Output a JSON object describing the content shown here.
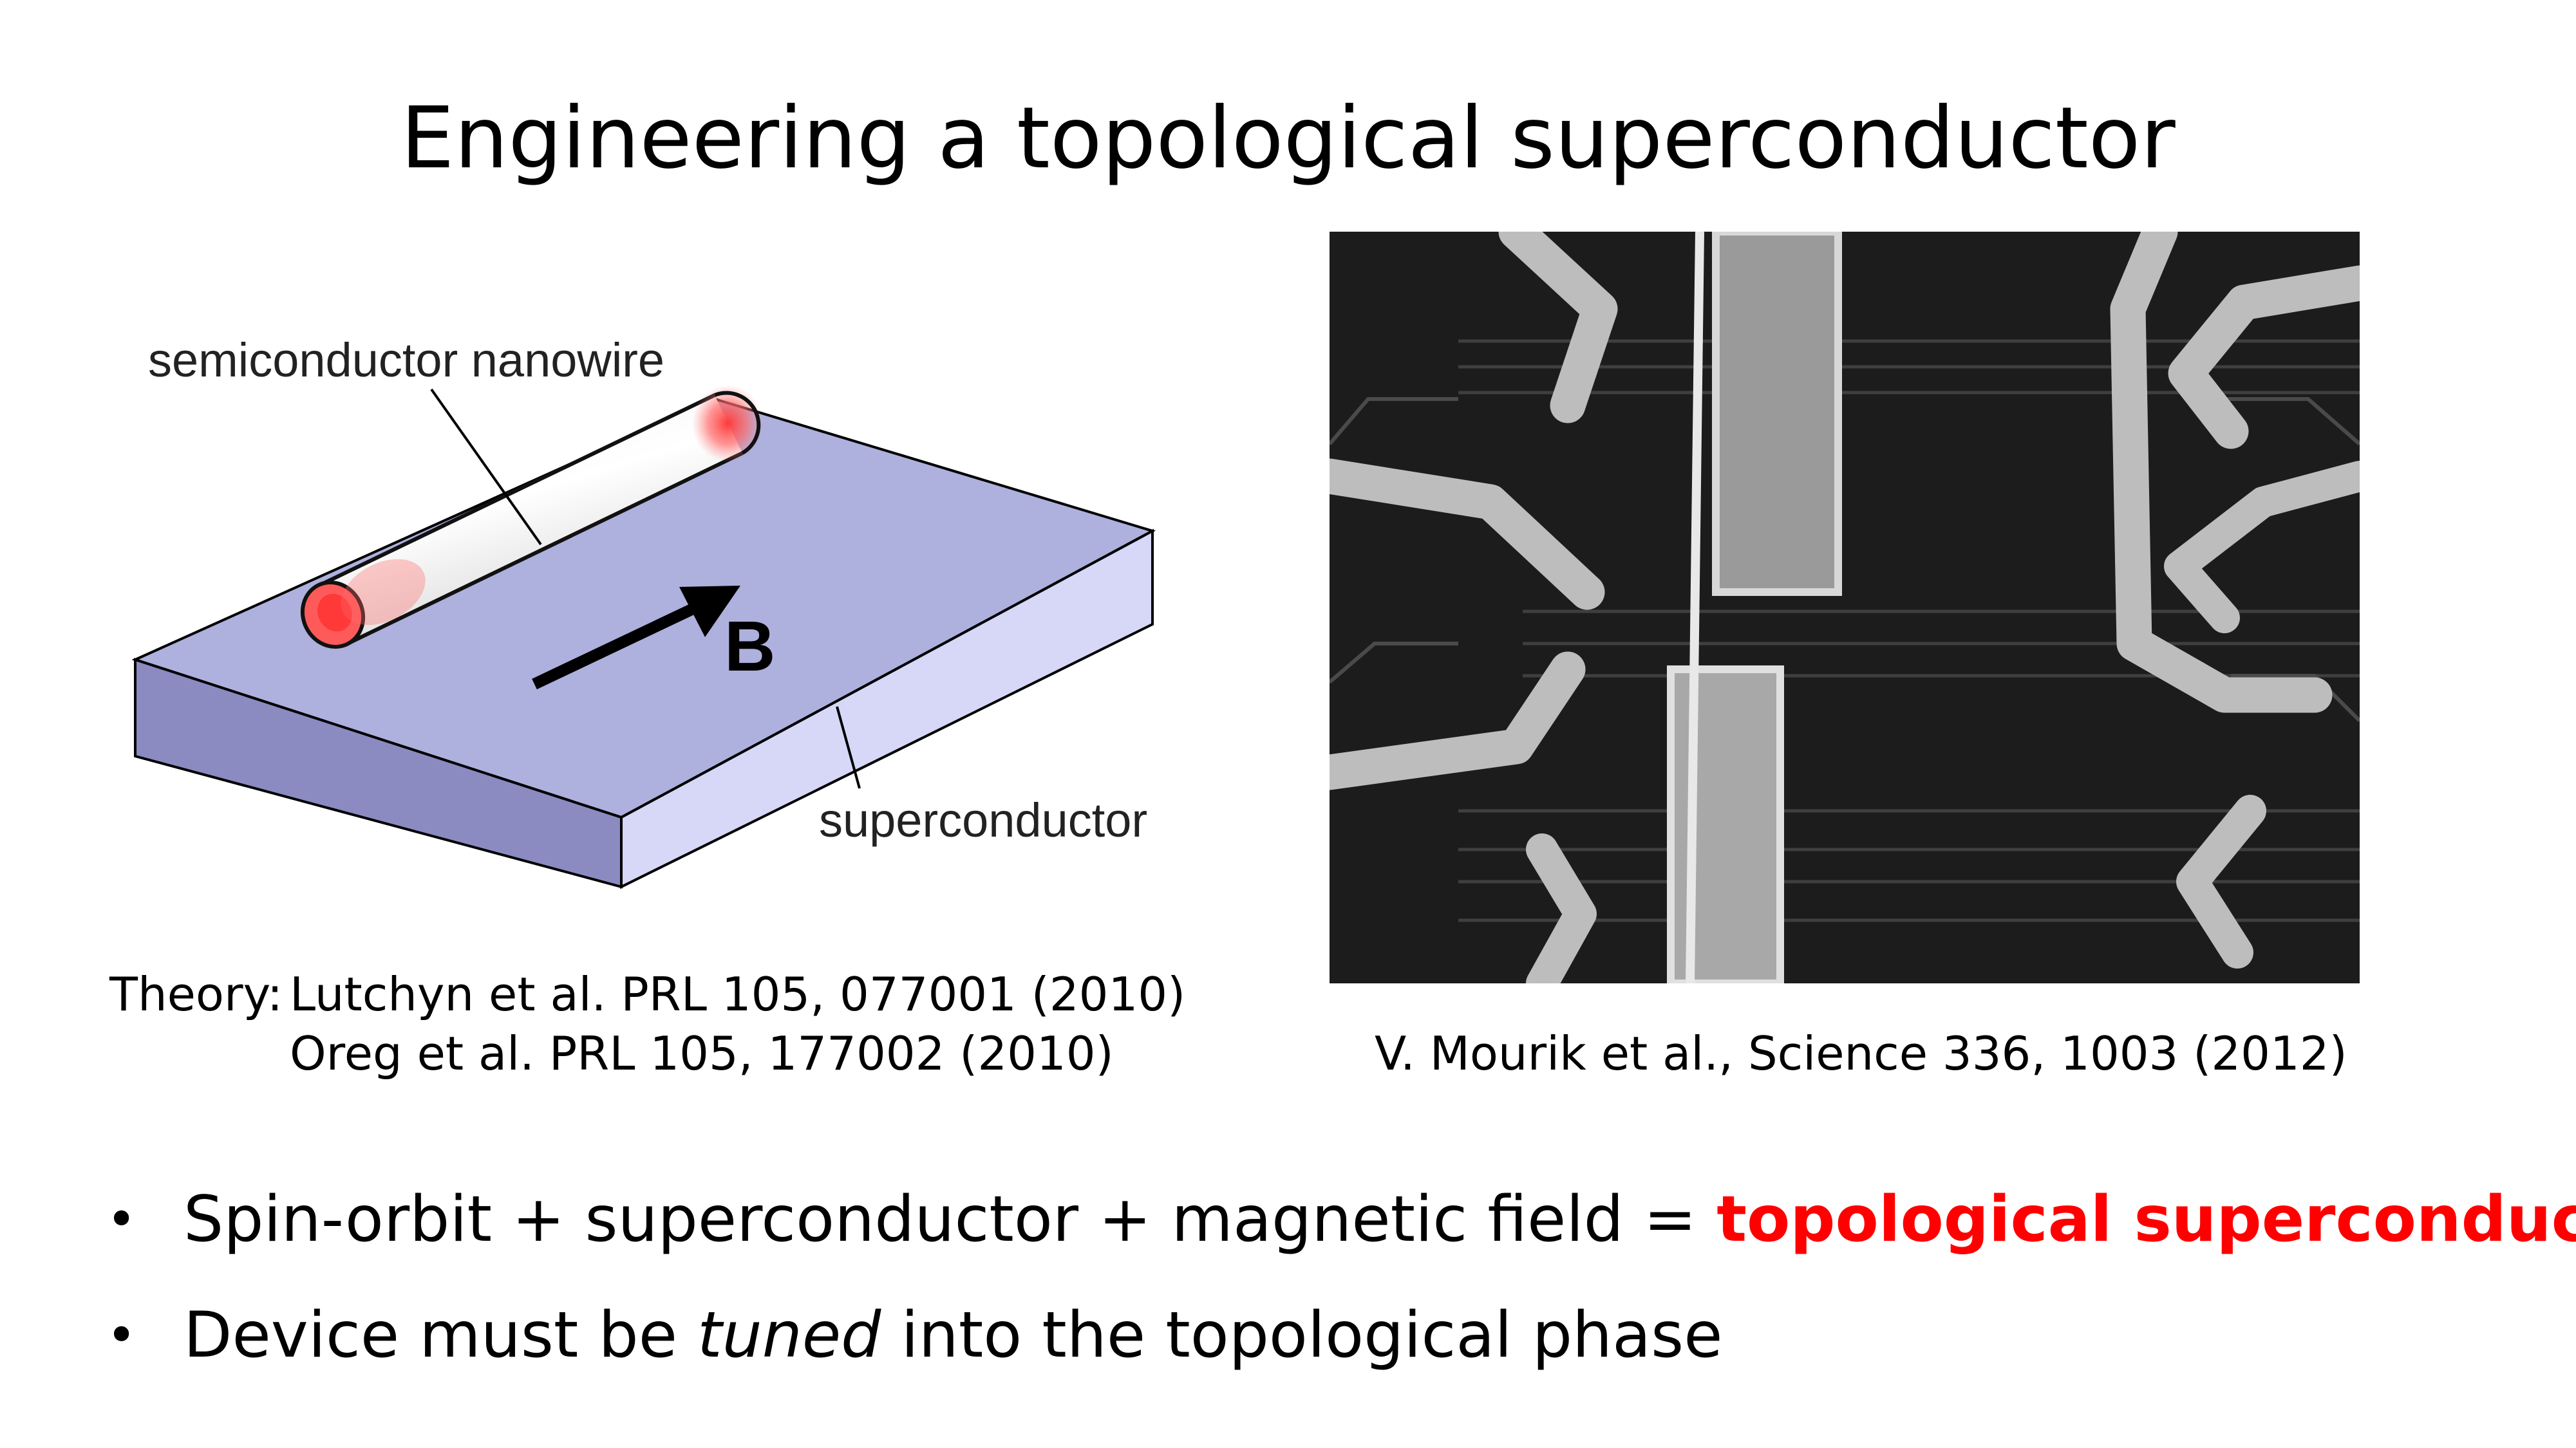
{
  "slide": {
    "title": "Engineering a topological superconductor"
  },
  "diagram": {
    "nanowire_label": "semiconductor nanowire",
    "superconductor_label": "superconductor",
    "field_label": "B",
    "colors": {
      "slab_top": "#aeb0dd",
      "slab_front": "#8b8bc2",
      "slab_side": "#d7d7f7",
      "majorana": "#ff3a3a"
    }
  },
  "references": {
    "theory_prefix": "Theory:",
    "theory_1": "Lutchyn et al. PRL 105, 077001 (2010)",
    "theory_2": "Oreg et al. PRL 105, 177002 (2010)",
    "experiment": "V. Mourik et al., Science 336, 1003 (2012)"
  },
  "bullets": [
    {
      "text_before": "Spin-orbit + superconductor + magnetic field = ",
      "highlight": "topological superconductor",
      "highlight_color": "#ff0000"
    },
    {
      "text_before": "Device must be ",
      "emphasis": "tuned",
      "text_after": " into the topological phase"
    }
  ]
}
